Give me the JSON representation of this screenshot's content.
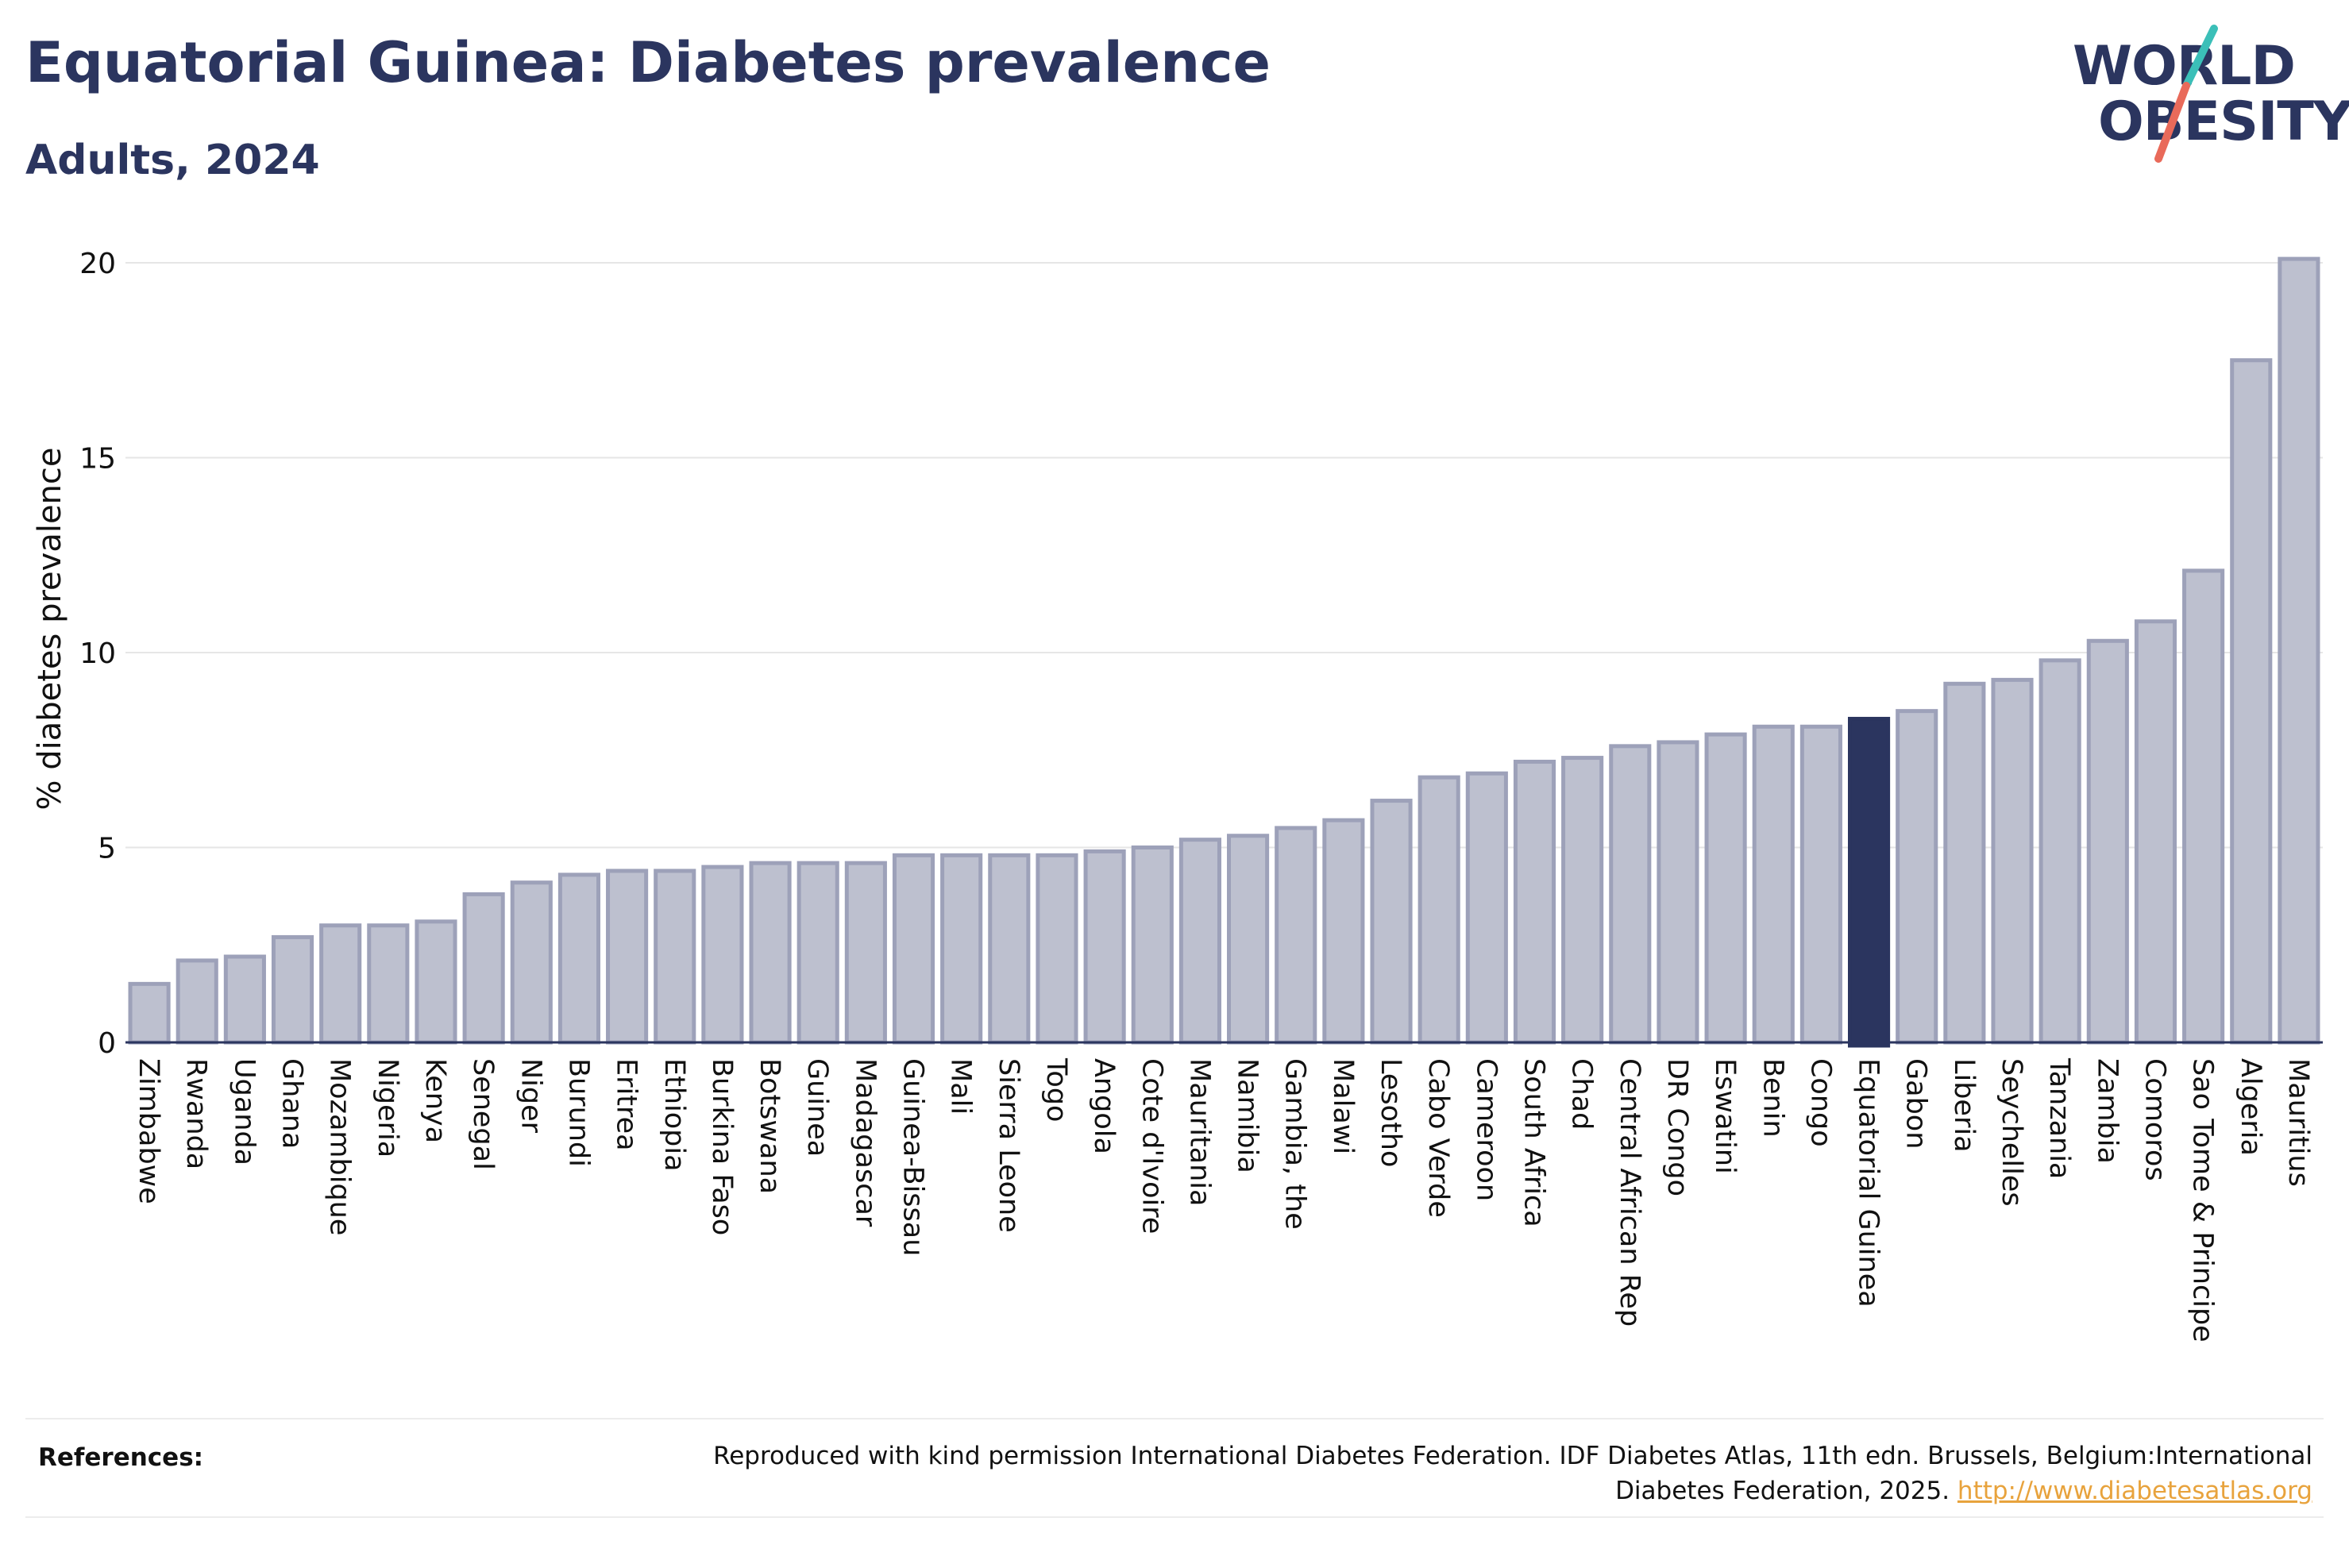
{
  "title": "Equatorial Guinea: Diabetes prevalence",
  "subtitle": "Adults, 2024",
  "logo": {
    "line1": "WORLD",
    "line2": "OBESITY"
  },
  "references": {
    "label": "References:",
    "text_line1": "Reproduced with kind permission International Diabetes Federation. IDF Diabetes Atlas, 11th edn. Brussels, Belgium:International",
    "text_line2": "Diabetes Federation, 2025.",
    "link": "http://www.diabetesatlas.org"
  },
  "colors": {
    "default_bar": "#bdc0cf",
    "default_bar_outline": "#9da1b9",
    "highlight_bar": "#2b355f",
    "title": "#2b355f",
    "link": "#e8a33d",
    "logo_teal": "#3bbfb8",
    "logo_coral": "#e96a5a"
  },
  "chart_data": {
    "type": "bar",
    "title": "Equatorial Guinea: Diabetes prevalence",
    "subtitle": "Adults, 2024",
    "xlabel": "",
    "ylabel": "% diabetes prevalence",
    "ylim": [
      0,
      20
    ],
    "yticks": [
      0,
      5,
      10,
      15,
      20
    ],
    "grid": true,
    "legend": "none",
    "highlight": "Equatorial Guinea",
    "categories": [
      "Zimbabwe",
      "Rwanda",
      "Uganda",
      "Ghana",
      "Mozambique",
      "Nigeria",
      "Kenya",
      "Senegal",
      "Niger",
      "Burundi",
      "Eritrea",
      "Ethiopia",
      "Burkina Faso",
      "Botswana",
      "Guinea",
      "Madagascar",
      "Guinea-Bissau",
      "Mali",
      "Sierra Leone",
      "Togo",
      "Angola",
      "Cote d'Ivoire",
      "Mauritania",
      "Namibia",
      "Gambia, the",
      "Malawi",
      "Lesotho",
      "Cabo Verde",
      "Cameroon",
      "South Africa",
      "Chad",
      "Central African Rep",
      "DR Congo",
      "Eswatini",
      "Benin",
      "Congo",
      "Equatorial Guinea",
      "Gabon",
      "Liberia",
      "Seychelles",
      "Tanzania",
      "Zambia",
      "Comoros",
      "Sao Tome & Principe",
      "Algeria",
      "Mauritius"
    ],
    "values": [
      1.5,
      2.1,
      2.2,
      2.7,
      3.0,
      3.0,
      3.1,
      3.8,
      4.1,
      4.3,
      4.4,
      4.4,
      4.5,
      4.6,
      4.6,
      4.6,
      4.8,
      4.8,
      4.8,
      4.8,
      4.9,
      5.0,
      5.2,
      5.3,
      5.5,
      5.7,
      6.2,
      6.8,
      6.9,
      7.2,
      7.3,
      7.6,
      7.7,
      7.9,
      8.1,
      8.1,
      8.3,
      8.5,
      9.2,
      9.3,
      9.8,
      10.3,
      10.8,
      12.1,
      17.5,
      20.1
    ]
  }
}
